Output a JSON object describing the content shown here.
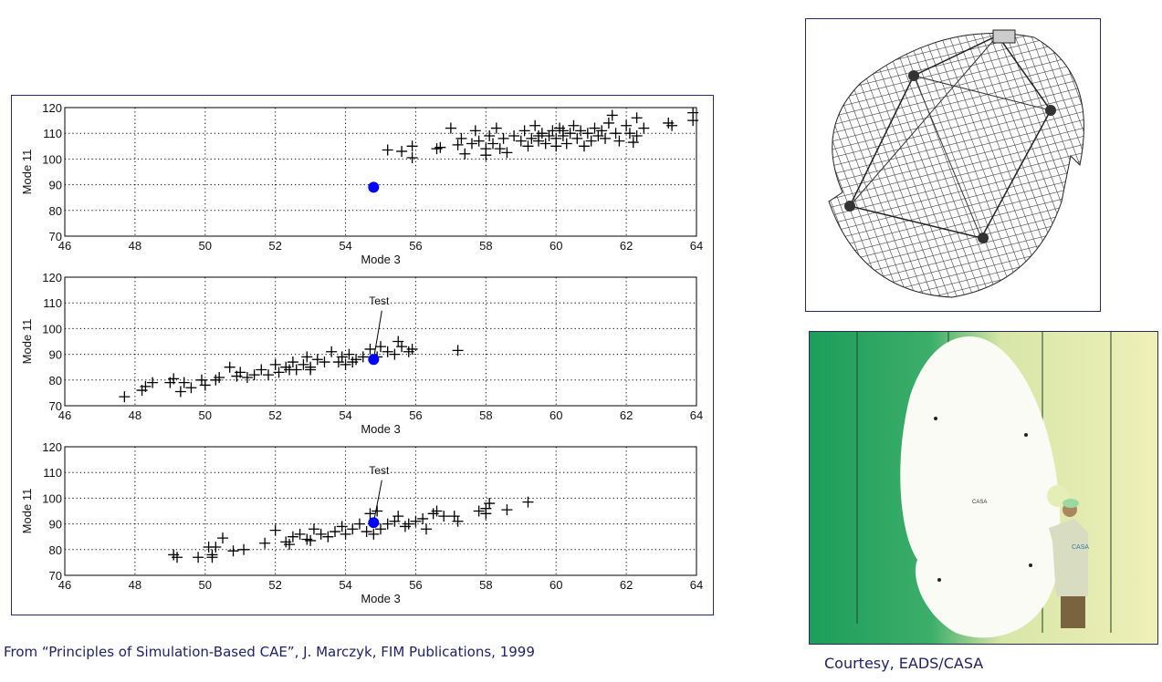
{
  "captions": {
    "left": "From “Principles of Simulation-Based CAE”, J. Marczyk, FIM Publications, 1999",
    "right": "Courtesy, EADS/CASA"
  },
  "photo_text": {
    "dish_logo": "CASA",
    "coat_logo": "CASA"
  },
  "colors": {
    "test_point": "#0000ff",
    "marker": "#000000",
    "frame": "#2a2a6a",
    "caption": "#1f1f6b"
  },
  "chart_data": [
    {
      "type": "scatter",
      "xlabel": "Mode 3",
      "ylabel": "Mode 11",
      "xlim": [
        46,
        64
      ],
      "ylim": [
        70,
        120
      ],
      "xticks": [
        46,
        48,
        50,
        52,
        54,
        56,
        58,
        60,
        62,
        64
      ],
      "yticks": [
        70,
        80,
        90,
        100,
        110,
        120
      ],
      "grid": true,
      "marker": "plus",
      "annotation": "",
      "test_point": [
        54.8,
        89
      ],
      "points": [
        [
          55.2,
          103.5
        ],
        [
          55.6,
          103
        ],
        [
          55.9,
          105
        ],
        [
          55.9,
          100.5
        ],
        [
          56.6,
          104
        ],
        [
          56.7,
          104.5
        ],
        [
          57,
          112
        ],
        [
          57.2,
          105.5
        ],
        [
          57.3,
          108
        ],
        [
          57.4,
          102
        ],
        [
          57.6,
          106
        ],
        [
          57.7,
          111
        ],
        [
          57.8,
          107
        ],
        [
          58,
          104
        ],
        [
          58,
          101.5
        ],
        [
          58.1,
          109
        ],
        [
          58.2,
          106
        ],
        [
          58.3,
          112
        ],
        [
          58.4,
          104
        ],
        [
          58.5,
          108
        ],
        [
          58.6,
          102.5
        ],
        [
          58.8,
          109
        ],
        [
          59,
          107
        ],
        [
          59.1,
          111
        ],
        [
          59.2,
          105
        ],
        [
          59.3,
          108
        ],
        [
          59.4,
          113
        ],
        [
          59.5,
          107
        ],
        [
          59.6,
          110
        ],
        [
          59.7,
          106
        ],
        [
          59.8,
          109
        ],
        [
          59.9,
          111
        ],
        [
          60,
          105
        ],
        [
          60,
          108
        ],
        [
          60.1,
          112
        ],
        [
          60.2,
          109
        ],
        [
          60.3,
          106
        ],
        [
          60.4,
          110
        ],
        [
          60.5,
          113
        ],
        [
          60.6,
          108
        ],
        [
          60.7,
          111
        ],
        [
          60.8,
          105
        ],
        [
          60.9,
          110
        ],
        [
          61,
          107
        ],
        [
          61.1,
          112
        ],
        [
          61.2,
          109
        ],
        [
          61.3,
          111
        ],
        [
          61.5,
          114
        ],
        [
          61.6,
          117
        ],
        [
          61.7,
          110
        ],
        [
          61.8,
          107
        ],
        [
          62,
          113
        ],
        [
          62.1,
          110
        ],
        [
          62.2,
          106.5
        ],
        [
          62.3,
          116
        ],
        [
          62.5,
          112
        ],
        [
          62.3,
          109
        ],
        [
          63.2,
          114
        ],
        [
          63.3,
          113
        ],
        [
          63.9,
          115
        ],
        [
          63.9,
          118
        ],
        [
          61.4,
          108
        ],
        [
          59.5,
          109
        ],
        [
          60.2,
          111
        ]
      ]
    },
    {
      "type": "scatter",
      "xlabel": "Mode 3",
      "ylabel": "Mode 11",
      "xlim": [
        46,
        64
      ],
      "ylim": [
        70,
        120
      ],
      "xticks": [
        46,
        48,
        50,
        52,
        54,
        56,
        58,
        60,
        62,
        64
      ],
      "yticks": [
        70,
        80,
        90,
        100,
        110,
        120
      ],
      "grid": true,
      "marker": "plus",
      "annotation": "Test",
      "test_point": [
        54.8,
        88
      ],
      "points": [
        [
          47.7,
          73.5
        ],
        [
          48.2,
          76
        ],
        [
          48.3,
          77.5
        ],
        [
          48.5,
          79
        ],
        [
          49,
          79
        ],
        [
          49.1,
          80.5
        ],
        [
          49.3,
          75.5
        ],
        [
          49.4,
          79
        ],
        [
          49.6,
          77
        ],
        [
          49.9,
          80
        ],
        [
          50,
          78
        ],
        [
          50.3,
          80
        ],
        [
          50.4,
          81
        ],
        [
          50.7,
          85
        ],
        [
          50.9,
          81.5
        ],
        [
          51,
          83
        ],
        [
          51.2,
          81
        ],
        [
          51.4,
          82
        ],
        [
          51.6,
          84
        ],
        [
          51.8,
          82
        ],
        [
          52,
          86
        ],
        [
          52.1,
          83
        ],
        [
          52.3,
          85
        ],
        [
          52.5,
          87
        ],
        [
          52.6,
          84
        ],
        [
          52.8,
          86
        ],
        [
          52.9,
          89
        ],
        [
          53,
          85
        ],
        [
          53.2,
          88
        ],
        [
          53.4,
          87
        ],
        [
          53.6,
          91
        ],
        [
          53.8,
          87
        ],
        [
          53.9,
          89
        ],
        [
          54,
          86
        ],
        [
          54.1,
          90
        ],
        [
          54.3,
          88
        ],
        [
          54.5,
          89
        ],
        [
          54.7,
          92
        ],
        [
          54.9,
          89
        ],
        [
          55,
          93
        ],
        [
          55.2,
          91
        ],
        [
          55.4,
          90
        ],
        [
          55.5,
          95
        ],
        [
          55.6,
          93
        ],
        [
          55.8,
          91
        ],
        [
          55.9,
          92
        ],
        [
          57.2,
          91.5
        ],
        [
          52.4,
          84
        ],
        [
          53,
          84
        ],
        [
          54.2,
          87
        ]
      ]
    },
    {
      "type": "scatter",
      "xlabel": "Mode 3",
      "ylabel": "Mode 11",
      "xlim": [
        46,
        64
      ],
      "ylim": [
        70,
        120
      ],
      "xticks": [
        46,
        48,
        50,
        52,
        54,
        56,
        58,
        60,
        62,
        64
      ],
      "yticks": [
        70,
        80,
        90,
        100,
        110,
        120
      ],
      "grid": true,
      "marker": "plus",
      "annotation": "Test",
      "test_point": [
        54.8,
        90.5
      ],
      "points": [
        [
          49.1,
          78
        ],
        [
          49.2,
          77
        ],
        [
          49.8,
          77
        ],
        [
          50.1,
          81
        ],
        [
          50.2,
          78
        ],
        [
          50.2,
          77
        ],
        [
          50.3,
          81
        ],
        [
          50.5,
          84.5
        ],
        [
          50.8,
          79.5
        ],
        [
          51.1,
          80
        ],
        [
          51.7,
          82.5
        ],
        [
          52,
          87.5
        ],
        [
          52.3,
          83
        ],
        [
          52.4,
          82
        ],
        [
          52.5,
          85
        ],
        [
          52.7,
          86
        ],
        [
          52.9,
          84
        ],
        [
          53,
          83.5
        ],
        [
          53.1,
          88
        ],
        [
          53.3,
          86
        ],
        [
          53.5,
          85
        ],
        [
          53.7,
          87
        ],
        [
          53.9,
          89
        ],
        [
          54,
          86
        ],
        [
          54.2,
          88
        ],
        [
          54.4,
          90
        ],
        [
          54.6,
          87
        ],
        [
          54.7,
          94
        ],
        [
          54.8,
          86
        ],
        [
          54.9,
          95
        ],
        [
          55,
          88
        ],
        [
          55.2,
          90
        ],
        [
          55.4,
          91
        ],
        [
          55.5,
          93
        ],
        [
          55.7,
          89
        ],
        [
          55.8,
          90
        ],
        [
          56,
          91
        ],
        [
          56.2,
          92
        ],
        [
          56.3,
          88
        ],
        [
          56.5,
          94
        ],
        [
          56.6,
          95
        ],
        [
          56.8,
          93
        ],
        [
          57.1,
          93
        ],
        [
          57.2,
          91
        ],
        [
          57.8,
          95
        ],
        [
          58,
          96
        ],
        [
          58,
          94
        ],
        [
          58.1,
          98
        ],
        [
          58.6,
          95.5
        ],
        [
          59.2,
          98.5
        ]
      ]
    }
  ]
}
